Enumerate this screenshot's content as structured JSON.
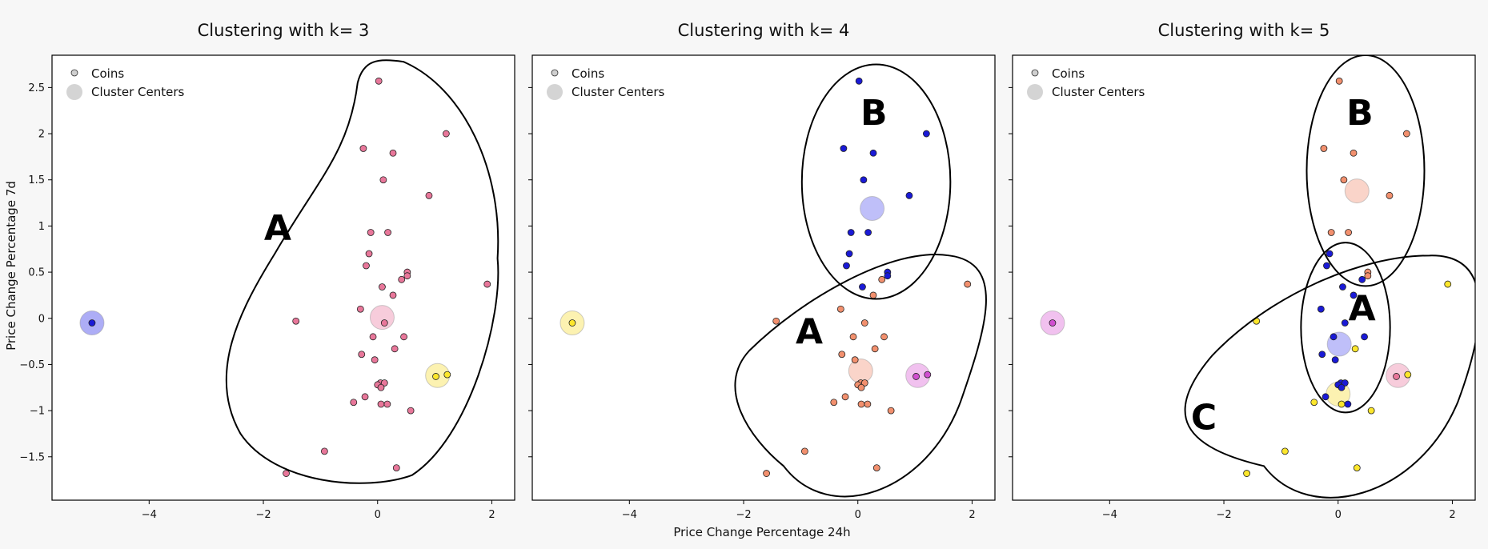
{
  "figure": {
    "xlabel": "Price Change Percentage 24h",
    "ylabel": "Price Change Percentage 7d",
    "legend": {
      "coins_label": "Coins",
      "centers_label": "Cluster Centers",
      "placement": "top-left"
    }
  },
  "chart_data": [
    {
      "type": "scatter",
      "title": "Clustering with k= 3",
      "xlabel": "Price Change Percentage 24h",
      "ylabel": "Price Change Percentage 7d",
      "xlim": [
        -5.7,
        2.4
      ],
      "ylim": [
        -1.97,
        2.85
      ],
      "xticks": [
        -4,
        -2,
        0,
        2
      ],
      "yticks": [
        -1.5,
        -1,
        -0.5,
        0,
        0.5,
        1,
        1.5,
        2,
        2.5
      ],
      "grid": false,
      "coin_fill": "#e8779a",
      "points": [
        [
          -5,
          -0.05,
          0
        ],
        [
          0.02,
          2.57,
          1
        ],
        [
          1.2,
          2.0,
          1
        ],
        [
          -0.25,
          1.84,
          1
        ],
        [
          0.27,
          1.79,
          1
        ],
        [
          0.1,
          1.5,
          1
        ],
        [
          0.9,
          1.33,
          1
        ],
        [
          -0.12,
          0.93,
          1
        ],
        [
          0.18,
          0.93,
          1
        ],
        [
          -0.15,
          0.7,
          1
        ],
        [
          -0.2,
          0.57,
          1
        ],
        [
          0.52,
          0.5,
          1
        ],
        [
          0.52,
          0.46,
          1
        ],
        [
          0.42,
          0.42,
          1
        ],
        [
          1.92,
          0.37,
          1
        ],
        [
          0.08,
          0.34,
          1
        ],
        [
          0.27,
          0.25,
          1
        ],
        [
          -0.3,
          0.1,
          1
        ],
        [
          -1.43,
          -0.03,
          1
        ],
        [
          0.12,
          -0.05,
          1
        ],
        [
          -0.08,
          -0.2,
          1
        ],
        [
          0.46,
          -0.2,
          1
        ],
        [
          0.3,
          -0.33,
          1
        ],
        [
          -0.28,
          -0.39,
          1
        ],
        [
          -0.05,
          -0.45,
          1
        ],
        [
          1.22,
          -0.61,
          2
        ],
        [
          1.02,
          -0.63,
          2
        ],
        [
          0.05,
          -0.7,
          1
        ],
        [
          0.12,
          -0.7,
          1
        ],
        [
          0.0,
          -0.72,
          1
        ],
        [
          0.06,
          -0.75,
          1
        ],
        [
          -0.22,
          -0.85,
          1
        ],
        [
          -0.42,
          -0.91,
          1
        ],
        [
          0.06,
          -0.93,
          1
        ],
        [
          0.17,
          -0.93,
          1
        ],
        [
          0.58,
          -1.0,
          1
        ],
        [
          -0.93,
          -1.44,
          1
        ],
        [
          0.33,
          -1.62,
          1
        ],
        [
          -1.6,
          -1.68,
          1
        ]
      ],
      "centers": [
        [
          -5,
          -0.05,
          0
        ],
        [
          0.08,
          0.01,
          1
        ],
        [
          1.05,
          -0.62,
          2
        ]
      ],
      "center_colors": [
        "#9f9ff5",
        "#f6c3d5",
        "#fbf0a3"
      ],
      "point_colors": [
        "#1a1ad6",
        "#e8779a",
        "#fce62c"
      ],
      "annotations": [
        {
          "text": "A",
          "x": -1.75,
          "y": 0.95
        }
      ],
      "outlines": [
        "M 0.45,2.78 C 1.5,2.5 2.2,1.6 2.1,0.65 C 2.2,0.0 1.6,-1.3 0.6,-1.7 C -0.2,-1.88 -1.8,-1.8 -2.4,-1.25 C -3,-0.6 -2.4,0.1 -1.8,0.7 C -1.05,1.5 -0.5,1.8 -0.35,2.55 C -0.25,2.8 0.0,2.82 0.45,2.78 Z"
      ]
    },
    {
      "type": "scatter",
      "title": "Clustering with k= 4",
      "xlabel": "Price Change Percentage 24h",
      "ylabel": "Price Change Percentage 7d",
      "xlim": [
        -5.7,
        2.4
      ],
      "ylim": [
        -1.97,
        2.85
      ],
      "xticks": [
        -4,
        -2,
        0,
        2
      ],
      "yticks": [
        -1.5,
        -1,
        -0.5,
        0,
        0.5,
        1,
        1.5,
        2,
        2.5
      ],
      "grid": false,
      "points": [
        [
          -5,
          -0.05,
          0
        ],
        [
          0.02,
          2.57,
          1
        ],
        [
          1.2,
          2.0,
          1
        ],
        [
          -0.25,
          1.84,
          1
        ],
        [
          0.27,
          1.79,
          1
        ],
        [
          0.1,
          1.5,
          1
        ],
        [
          0.9,
          1.33,
          1
        ],
        [
          -0.12,
          0.93,
          1
        ],
        [
          0.18,
          0.93,
          1
        ],
        [
          -0.15,
          0.7,
          1
        ],
        [
          -0.2,
          0.57,
          1
        ],
        [
          0.52,
          0.5,
          1
        ],
        [
          0.52,
          0.46,
          1
        ],
        [
          0.42,
          0.42,
          3
        ],
        [
          1.92,
          0.37,
          3
        ],
        [
          0.08,
          0.34,
          1
        ],
        [
          0.27,
          0.25,
          3
        ],
        [
          -0.3,
          0.1,
          3
        ],
        [
          -1.43,
          -0.03,
          3
        ],
        [
          0.12,
          -0.05,
          3
        ],
        [
          -0.08,
          -0.2,
          3
        ],
        [
          0.46,
          -0.2,
          3
        ],
        [
          0.3,
          -0.33,
          3
        ],
        [
          -0.28,
          -0.39,
          3
        ],
        [
          -0.05,
          -0.45,
          3
        ],
        [
          1.22,
          -0.61,
          2
        ],
        [
          1.02,
          -0.63,
          2
        ],
        [
          0.05,
          -0.7,
          3
        ],
        [
          0.12,
          -0.7,
          3
        ],
        [
          0.0,
          -0.72,
          3
        ],
        [
          0.06,
          -0.75,
          3
        ],
        [
          -0.22,
          -0.85,
          3
        ],
        [
          -0.42,
          -0.91,
          3
        ],
        [
          0.06,
          -0.93,
          3
        ],
        [
          0.17,
          -0.93,
          3
        ],
        [
          0.58,
          -1.0,
          3
        ],
        [
          -0.93,
          -1.44,
          3
        ],
        [
          0.33,
          -1.62,
          3
        ],
        [
          -1.6,
          -1.68,
          3
        ]
      ],
      "centers": [
        [
          -5,
          -0.05,
          0
        ],
        [
          0.25,
          1.19,
          1
        ],
        [
          1.05,
          -0.62,
          2
        ],
        [
          0.05,
          -0.57,
          3
        ]
      ],
      "center_colors": [
        "#fbf0a3",
        "#b4b4f8",
        "#eeb6ec",
        "#f9cdbf"
      ],
      "point_colors": [
        "#fce62c",
        "#1a1ad6",
        "#d04fd0",
        "#f2906e"
      ],
      "annotations": [
        {
          "text": "B",
          "x": 0.28,
          "y": 2.2
        },
        {
          "text": "A",
          "x": -0.85,
          "y": -0.17
        }
      ],
      "outlines": [
        "M -0.98,1.48 A 1.3 1.27 0 1 0 1.62 1.48 A 1.3 1.27 0 1 0 -0.98 1.48 Z",
        "M -1.3,-1.6 C -0.5,-2.25 1.2,-1.9 1.8,-0.9 C 2.25,-0.1 2.6,0.6 1.6,0.68 C 0.6,0.78 -1.0,0.2 -1.9,-0.35 C -2.5,-0.75 -1.9,-1.3 -1.3,-1.6 Z"
      ]
    },
    {
      "type": "scatter",
      "title": "Clustering with k= 5",
      "xlabel": "Price Change Percentage 24h",
      "ylabel": "Price Change Percentage 7d",
      "xlim": [
        -5.7,
        2.4
      ],
      "ylim": [
        -1.97,
        2.85
      ],
      "xticks": [
        -4,
        -2,
        0,
        2
      ],
      "yticks": [
        -1.5,
        -1,
        -0.5,
        0,
        0.5,
        1,
        1.5,
        2,
        2.5
      ],
      "grid": false,
      "points": [
        [
          -5,
          -0.05,
          0
        ],
        [
          0.02,
          2.57,
          1
        ],
        [
          1.2,
          2.0,
          1
        ],
        [
          -0.25,
          1.84,
          1
        ],
        [
          0.27,
          1.79,
          1
        ],
        [
          0.1,
          1.5,
          1
        ],
        [
          0.9,
          1.33,
          1
        ],
        [
          -0.12,
          0.93,
          1
        ],
        [
          0.18,
          0.93,
          1
        ],
        [
          -0.15,
          0.7,
          2
        ],
        [
          -0.2,
          0.57,
          2
        ],
        [
          0.52,
          0.5,
          1
        ],
        [
          0.52,
          0.46,
          1
        ],
        [
          0.42,
          0.42,
          2
        ],
        [
          1.92,
          0.37,
          3
        ],
        [
          0.08,
          0.34,
          2
        ],
        [
          0.27,
          0.25,
          2
        ],
        [
          -0.3,
          0.1,
          2
        ],
        [
          -1.43,
          -0.03,
          3
        ],
        [
          0.12,
          -0.05,
          2
        ],
        [
          -0.08,
          -0.2,
          2
        ],
        [
          0.46,
          -0.2,
          2
        ],
        [
          0.3,
          -0.33,
          3
        ],
        [
          -0.28,
          -0.39,
          2
        ],
        [
          -0.05,
          -0.45,
          2
        ],
        [
          1.22,
          -0.61,
          3
        ],
        [
          1.02,
          -0.63,
          4
        ],
        [
          0.05,
          -0.7,
          2
        ],
        [
          0.12,
          -0.7,
          2
        ],
        [
          0.0,
          -0.72,
          2
        ],
        [
          0.06,
          -0.75,
          2
        ],
        [
          -0.22,
          -0.85,
          2
        ],
        [
          -0.42,
          -0.91,
          3
        ],
        [
          0.06,
          -0.93,
          3
        ],
        [
          0.17,
          -0.93,
          2
        ],
        [
          0.58,
          -1.0,
          3
        ],
        [
          -0.93,
          -1.44,
          3
        ],
        [
          0.33,
          -1.62,
          3
        ],
        [
          -1.6,
          -1.68,
          3
        ]
      ],
      "centers": [
        [
          -5,
          -0.05,
          0
        ],
        [
          0.33,
          1.38,
          1
        ],
        [
          0.02,
          -0.28,
          2
        ],
        [
          1.05,
          -0.62,
          4
        ],
        [
          0.0,
          -0.82,
          3
        ]
      ],
      "center_colors": [
        "#eeb6ec",
        "#f9cdbf",
        "#b4b4f8",
        "#f6c3d5",
        "#fbf0a3"
      ],
      "point_colors": [
        "#d04fd0",
        "#f2906e",
        "#1a1ad6",
        "#fce62c",
        "#e8779a"
      ],
      "annotations": [
        {
          "text": "B",
          "x": 0.38,
          "y": 2.2
        },
        {
          "text": "A",
          "x": 0.42,
          "y": 0.08
        },
        {
          "text": "C",
          "x": -2.35,
          "y": -1.1
        }
      ],
      "outlines": [
        "M -0.55,1.6 A 1.03 1.25 0 1 0 1.51 1.6 A 1.03 1.25 0 1 0 -0.55 1.6 Z",
        "M -0.65,-0.1 A 0.78 0.92 0 1 0 0.91 -0.1 A 0.78 0.92 0 1 0 -0.65 -0.1 Z",
        "M -1.3,-1.6 C -0.5,-2.25 1.4,-1.95 2.1,-0.9 C 2.55,-0.15 2.8,0.7 1.6,0.68 C 0.4,0.68 -1.2,0.25 -2.2,-0.4 C -3.1,-1.05 -2.7,-1.4 -1.3,-1.6 Z"
      ]
    }
  ]
}
